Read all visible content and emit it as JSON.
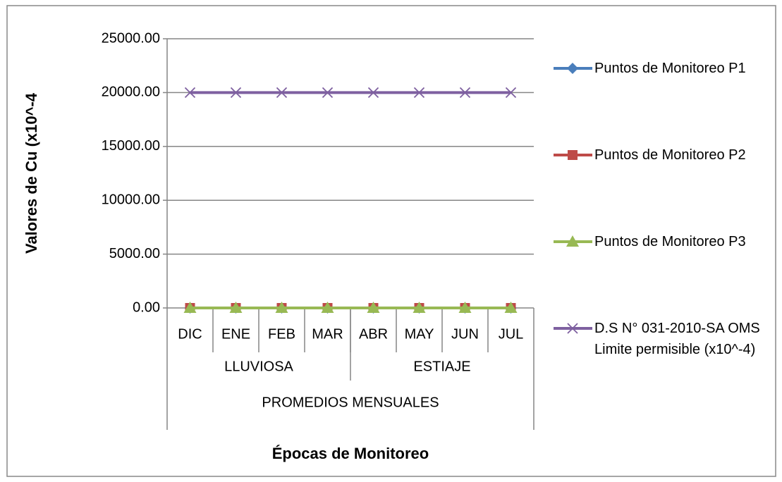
{
  "chart_data": {
    "type": "line",
    "y_axis_label": "Valores de Cu (x10^-4",
    "x_axis_label": "Épocas de Monitoreo",
    "categories": [
      "DIC",
      "ENE",
      "FEB",
      "MAR",
      "ABR",
      "MAY",
      "JUN",
      "JUL"
    ],
    "group_labels": [
      "LLUVIOSA",
      "ESTIAJE"
    ],
    "super_label": "PROMEDIOS MENSUALES",
    "ylim": [
      0,
      25000
    ],
    "yticks": [
      {
        "value": 0,
        "label": "0.00"
      },
      {
        "value": 5000,
        "label": "5000.00"
      },
      {
        "value": 10000,
        "label": "10000.00"
      },
      {
        "value": 15000,
        "label": "15000.00"
      },
      {
        "value": 20000,
        "label": "20000.00"
      },
      {
        "value": 25000,
        "label": "25000.00"
      }
    ],
    "grid": true,
    "legend": "right",
    "series": [
      {
        "name": "Puntos de Monitoreo P1",
        "color": "#4a7ebb",
        "marker": "diamond",
        "values": [
          0,
          0,
          0,
          0,
          0,
          0,
          0,
          0
        ]
      },
      {
        "name": "Puntos de Monitoreo P2",
        "color": "#be4b48",
        "marker": "square",
        "values": [
          0,
          0,
          0,
          0,
          0,
          0,
          0,
          0
        ]
      },
      {
        "name": "Puntos de Monitoreo P3",
        "color": "#98b954",
        "marker": "triangle",
        "values": [
          0,
          0,
          0,
          0,
          0,
          0,
          0,
          0
        ]
      },
      {
        "name": "D.S N° 031-2010-SA OMS Limite permisible (x10^-4)",
        "color": "#7e60a0",
        "marker": "x",
        "values": [
          20000,
          20000,
          20000,
          20000,
          20000,
          20000,
          20000,
          20000
        ]
      }
    ]
  }
}
